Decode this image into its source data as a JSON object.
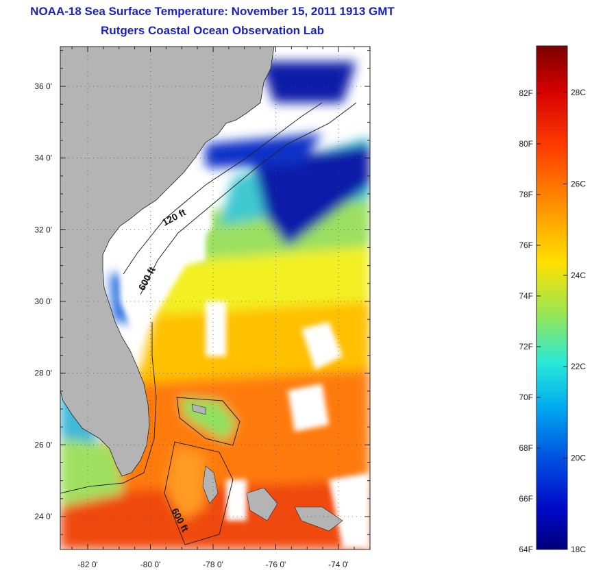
{
  "header": {
    "title": "NOAA-18 Sea Surface Temperature:  November 15, 2011 1913 GMT",
    "subtitle": "Rutgers Coastal Ocean Observation Lab"
  },
  "map": {
    "lat_ticks": [
      {
        "value": 36,
        "label": "36 0'"
      },
      {
        "value": 34,
        "label": "34 0'"
      },
      {
        "value": 32,
        "label": "32 0'"
      },
      {
        "value": 30,
        "label": "30 0'"
      },
      {
        "value": 28,
        "label": "28 0'"
      },
      {
        "value": 26,
        "label": "26 0'"
      },
      {
        "value": 24,
        "label": "24 0'"
      }
    ],
    "lon_ticks": [
      {
        "value": -82,
        "label": "-82 0'"
      },
      {
        "value": -80,
        "label": "-80 0'"
      },
      {
        "value": -78,
        "label": "-78 0'"
      },
      {
        "value": -76,
        "label": "-76 0'"
      },
      {
        "value": -74,
        "label": "-74 0'"
      }
    ],
    "depth_labels": [
      "120 ft",
      "600 ft",
      "600 ft"
    ],
    "colors": {
      "land": "#b4b4b4",
      "cloud": "#ffffff",
      "gridline": "#555555"
    }
  },
  "colorbar": {
    "fahrenheit_labels": [
      "82F",
      "80F",
      "78F",
      "76F",
      "74F",
      "72F",
      "70F",
      "68F",
      "66F",
      "64F"
    ],
    "celsius_labels": [
      "28C",
      "26C",
      "24C",
      "22C",
      "20C",
      "18C"
    ],
    "colors": [
      "#800000",
      "#ff0000",
      "#ff8000",
      "#ffff00",
      "#80ff80",
      "#00ffff",
      "#0080ff",
      "#0000ff",
      "#000080"
    ]
  }
}
